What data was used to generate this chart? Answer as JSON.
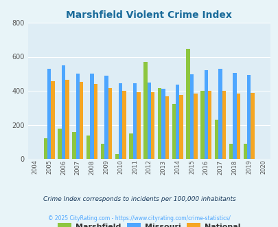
{
  "title": "Marshfield Violent Crime Index",
  "years": [
    2004,
    2005,
    2006,
    2007,
    2008,
    2009,
    2010,
    2011,
    2012,
    2013,
    2014,
    2015,
    2016,
    2017,
    2018,
    2019,
    2020
  ],
  "marshfield": [
    0,
    120,
    178,
    157,
    138,
    90,
    28,
    150,
    568,
    415,
    325,
    645,
    400,
    230,
    90,
    90,
    0
  ],
  "missouri": [
    0,
    528,
    550,
    500,
    500,
    490,
    445,
    443,
    448,
    413,
    435,
    495,
    520,
    530,
    505,
    492,
    0
  ],
  "national": [
    0,
    455,
    464,
    452,
    442,
    415,
    400,
    390,
    390,
    368,
    375,
    383,
    400,
    398,
    385,
    387,
    0
  ],
  "marshfield_color": "#8dc63f",
  "missouri_color": "#4da6ff",
  "national_color": "#f5a623",
  "bg_color": "#e8f4f8",
  "plot_bg_color": "#deedf5",
  "ylim": [
    0,
    800
  ],
  "yticks": [
    0,
    200,
    400,
    600,
    800
  ],
  "footnote1": "Crime Index corresponds to incidents per 100,000 inhabitants",
  "footnote2": "© 2025 CityRating.com - https://www.cityrating.com/crime-statistics/",
  "legend_labels": [
    "Marshfield",
    "Missouri",
    "National"
  ],
  "title_color": "#1a6b9a",
  "footnote1_color": "#1a3a5c",
  "footnote2_color": "#4da6ff"
}
